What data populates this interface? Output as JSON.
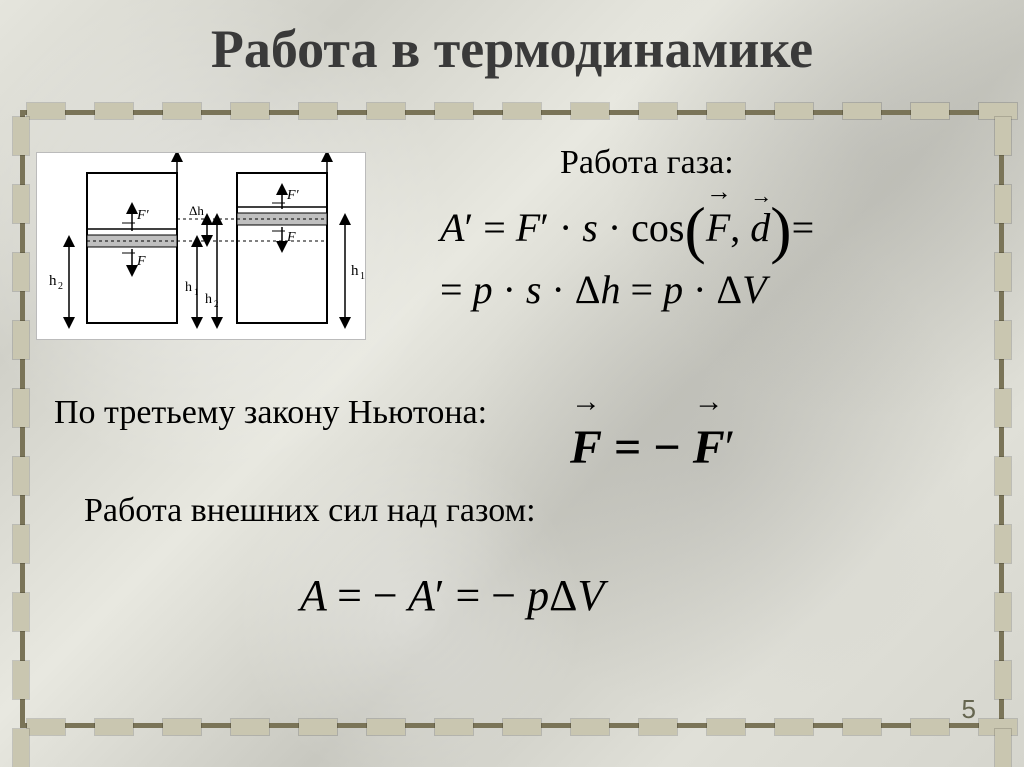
{
  "title": "Работа в термодинамике",
  "labels": {
    "gas_work": "Работа газа:",
    "newton": "По третьему закону Ньютона:",
    "external": "Работа внешних сил над газом:"
  },
  "equations": {
    "eq1_line1": {
      "A": "A",
      "prime": "′",
      "eq": " = ",
      "F": "F",
      "s": "s",
      "dot": " · ",
      "cos": "cos",
      "Fv": "F",
      "comma": ", ",
      "d": "d",
      "tail": "="
    },
    "eq1_line2": {
      "eq": "= ",
      "p": "p",
      "dot": " · ",
      "s": "s",
      "dh": "Δh",
      "eqmid": " = ",
      "dV": "ΔV"
    },
    "eq2": {
      "F": "F",
      "eq": " = −",
      "Fp": "F",
      "prime": "′"
    },
    "eq3": {
      "A": "A",
      "eq": " = −",
      "Ap": "A",
      "prime": "′",
      "eq2": " = − ",
      "p": "p",
      "dV": "ΔV"
    }
  },
  "diagram": {
    "h1": "h",
    "h1sub": "1",
    "h2": "h",
    "h2sub": "2",
    "dh": "Δh",
    "F": "F",
    "Fp": "F′"
  },
  "page_number": "5",
  "style": {
    "slide_size": [
      1024,
      767
    ],
    "title_fontsize": 54,
    "label_fontsize": 34,
    "eq1_fontsize": 40,
    "eq2_fontsize": 48,
    "eq3_fontsize": 44,
    "frame_border_color": "#7a7458",
    "dash_color": "#c9c6b0",
    "background_base": "#d8d8d0",
    "text_color": "#000000",
    "title_color": "#3a3a3a",
    "pagenum_color": "#666650",
    "diagram_bg": "#ffffff"
  }
}
